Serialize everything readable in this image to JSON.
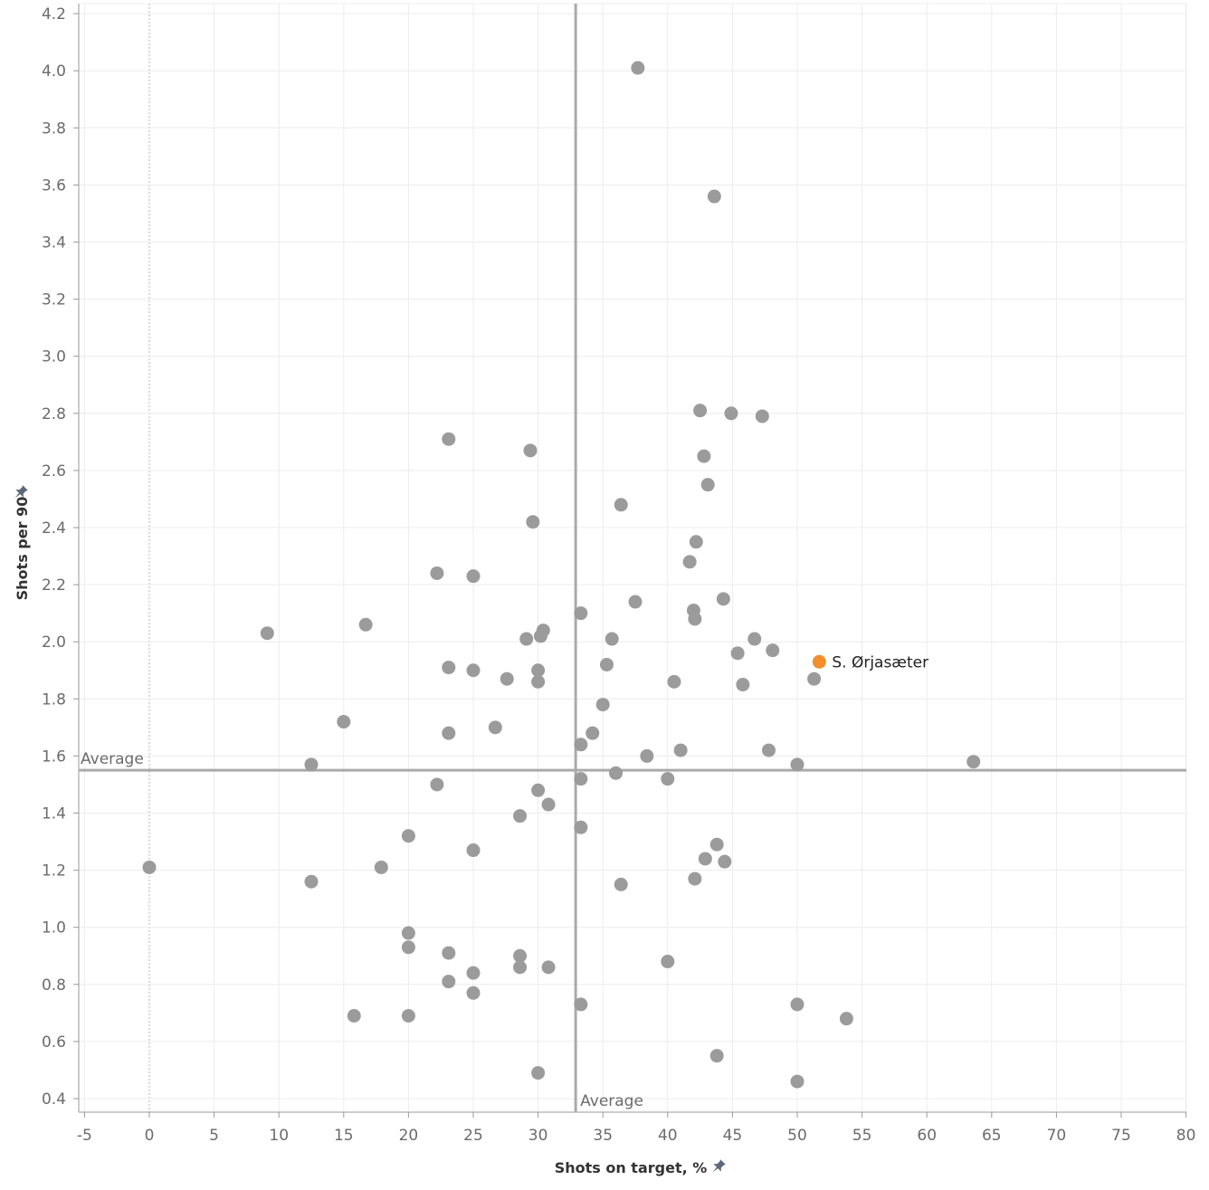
{
  "chart_data": {
    "type": "scatter",
    "title": "",
    "xlabel": "Shots on target, %",
    "ylabel": "Shots per 90",
    "xlim": [
      -5,
      80
    ],
    "ylim": [
      0.35,
      4.25
    ],
    "x_ticks": [
      -5,
      0,
      5,
      10,
      15,
      20,
      25,
      30,
      35,
      40,
      45,
      50,
      55,
      60,
      65,
      70,
      75,
      80
    ],
    "y_ticks": [
      0.4,
      0.6,
      0.8,
      1.0,
      1.2,
      1.4,
      1.6,
      1.8,
      2.0,
      2.2,
      2.4,
      2.6,
      2.8,
      3.0,
      3.2,
      3.4,
      3.6,
      3.8,
      4.0,
      4.2
    ],
    "x_tick_labels": [
      "-5",
      "0",
      "5",
      "10",
      "15",
      "20",
      "25",
      "30",
      "35",
      "40",
      "45",
      "50",
      "55",
      "60",
      "65",
      "70",
      "75",
      "80"
    ],
    "y_tick_labels": [
      "0.4",
      "0.6",
      "0.8",
      "1.0",
      "1.2",
      "1.4",
      "1.6",
      "1.8",
      "2.0",
      "2.2",
      "2.4",
      "2.6",
      "2.8",
      "3.0",
      "3.2",
      "3.4",
      "3.6",
      "3.8",
      "4.0",
      "4.2"
    ],
    "average_x": 32.9,
    "average_y": 1.55,
    "average_x_label": "Average",
    "average_y_label": "Average",
    "highlight": {
      "name": "S. Ørjasæter",
      "x": 51.7,
      "y": 1.93,
      "color": "#f28e2b"
    },
    "point_color": "#9b9b9b",
    "series": [
      {
        "name": "Players",
        "points": [
          [
            37.7,
            4.01
          ],
          [
            43.6,
            3.56
          ],
          [
            42.5,
            2.81
          ],
          [
            44.9,
            2.8
          ],
          [
            47.3,
            2.79
          ],
          [
            23.1,
            2.71
          ],
          [
            29.4,
            2.67
          ],
          [
            42.8,
            2.65
          ],
          [
            43.1,
            2.55
          ],
          [
            36.4,
            2.48
          ],
          [
            29.6,
            2.42
          ],
          [
            42.2,
            2.35
          ],
          [
            41.7,
            2.28
          ],
          [
            22.2,
            2.24
          ],
          [
            25.0,
            2.23
          ],
          [
            44.3,
            2.15
          ],
          [
            37.5,
            2.14
          ],
          [
            33.3,
            2.1
          ],
          [
            42.0,
            2.11
          ],
          [
            42.1,
            2.08
          ],
          [
            16.7,
            2.06
          ],
          [
            30.4,
            2.04
          ],
          [
            9.1,
            2.03
          ],
          [
            30.2,
            2.02
          ],
          [
            29.1,
            2.01
          ],
          [
            35.7,
            2.01
          ],
          [
            46.7,
            2.01
          ],
          [
            48.1,
            1.97
          ],
          [
            45.4,
            1.96
          ],
          [
            35.3,
            1.92
          ],
          [
            23.1,
            1.91
          ],
          [
            25.0,
            1.9
          ],
          [
            30.0,
            1.9
          ],
          [
            27.6,
            1.87
          ],
          [
            30.0,
            1.86
          ],
          [
            40.5,
            1.86
          ],
          [
            51.3,
            1.87
          ],
          [
            45.8,
            1.85
          ],
          [
            35.0,
            1.78
          ],
          [
            15.0,
            1.72
          ],
          [
            26.7,
            1.7
          ],
          [
            23.1,
            1.68
          ],
          [
            34.2,
            1.68
          ],
          [
            33.3,
            1.64
          ],
          [
            41.0,
            1.62
          ],
          [
            47.8,
            1.62
          ],
          [
            38.4,
            1.6
          ],
          [
            63.6,
            1.58
          ],
          [
            12.5,
            1.57
          ],
          [
            50.0,
            1.57
          ],
          [
            36.0,
            1.54
          ],
          [
            33.3,
            1.52
          ],
          [
            40.0,
            1.52
          ],
          [
            22.2,
            1.5
          ],
          [
            30.0,
            1.48
          ],
          [
            30.8,
            1.43
          ],
          [
            28.6,
            1.39
          ],
          [
            33.3,
            1.35
          ],
          [
            20.0,
            1.32
          ],
          [
            43.8,
            1.29
          ],
          [
            25.0,
            1.27
          ],
          [
            42.9,
            1.24
          ],
          [
            44.4,
            1.23
          ],
          [
            0.0,
            1.21
          ],
          [
            17.9,
            1.21
          ],
          [
            42.1,
            1.17
          ],
          [
            12.5,
            1.16
          ],
          [
            36.4,
            1.15
          ],
          [
            20.0,
            0.98
          ],
          [
            20.0,
            0.93
          ],
          [
            23.1,
            0.91
          ],
          [
            28.6,
            0.9
          ],
          [
            40.0,
            0.88
          ],
          [
            28.6,
            0.86
          ],
          [
            30.8,
            0.86
          ],
          [
            25.0,
            0.84
          ],
          [
            23.1,
            0.81
          ],
          [
            25.0,
            0.77
          ],
          [
            33.3,
            0.73
          ],
          [
            50.0,
            0.73
          ],
          [
            15.8,
            0.69
          ],
          [
            20.0,
            0.69
          ],
          [
            53.8,
            0.68
          ],
          [
            43.8,
            0.55
          ],
          [
            30.0,
            0.49
          ],
          [
            50.0,
            0.46
          ]
        ]
      }
    ]
  }
}
